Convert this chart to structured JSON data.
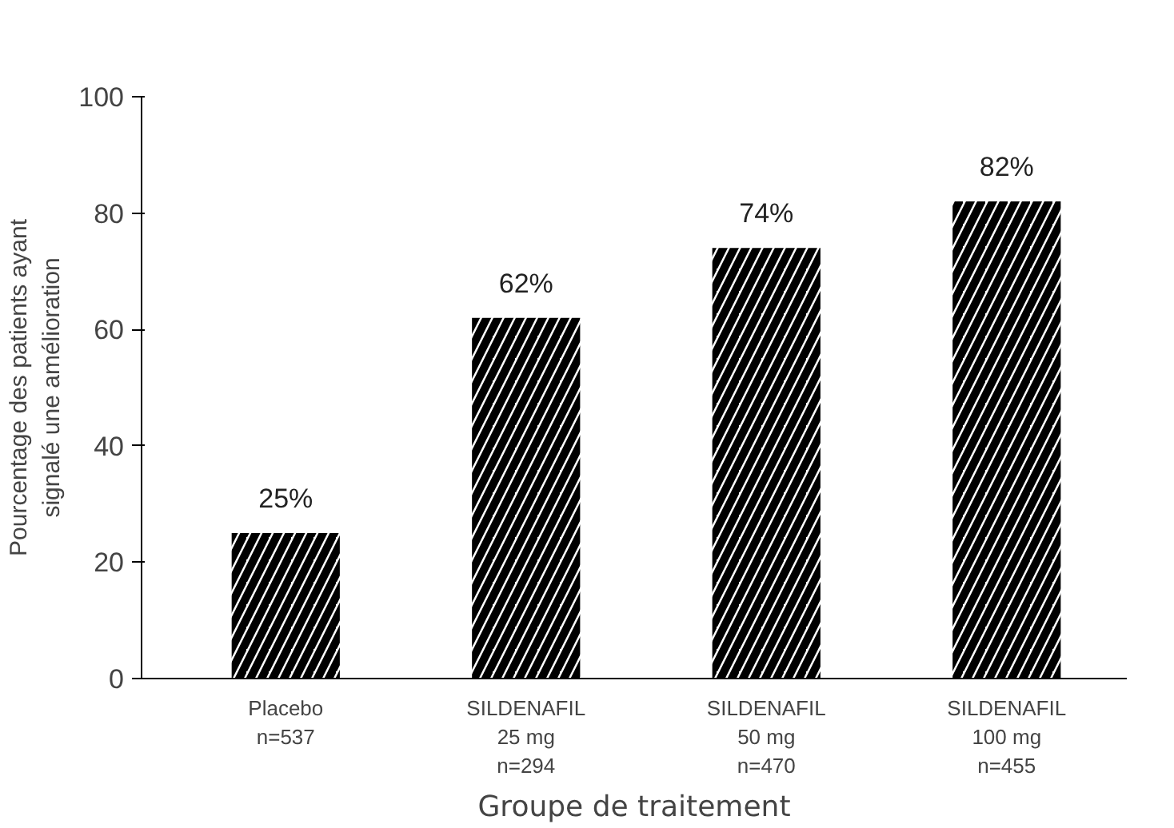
{
  "chart_data": {
    "type": "bar",
    "xlabel": "Groupe de traitement",
    "ylabel": "Pourcentage des patients ayant\nsignalé une amélioration",
    "categories": [
      "Placebo\nn=537",
      "SILDENAFIL\n25 mg\nn=294",
      "SILDENAFIL\n50 mg\nn=470",
      "SILDENAFIL\n100 mg\nn=455"
    ],
    "values": [
      25,
      62,
      74,
      82
    ],
    "value_labels": [
      "25%",
      "62%",
      "74%",
      "82%"
    ],
    "color": "#000000",
    "ylim": [
      0,
      100
    ],
    "yticks": [
      0,
      20,
      40,
      60,
      80,
      100
    ],
    "grid": false
  }
}
